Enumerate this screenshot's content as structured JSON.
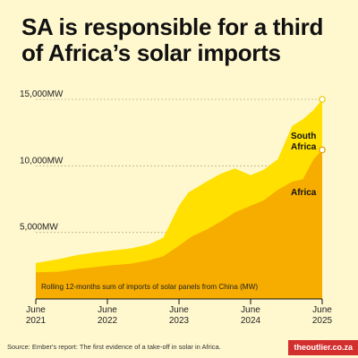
{
  "headline": {
    "line1": "SA is responsible for a third",
    "line2": "of Africa’s solar imports"
  },
  "colors": {
    "background": "#fff8cf",
    "africa_fill": "#f6ad00",
    "south_africa_fill": "#ffe000",
    "brand_bg": "#d32f2f"
  },
  "chart_data": {
    "type": "area",
    "subtitle": "Rolling 12-months sum of imports of solar panels from China (MW)",
    "y_ticks": [
      "5,000MW",
      "10,000MW",
      "15,000MW"
    ],
    "y_tick_values": [
      5000,
      10000,
      15000
    ],
    "x_ticks": [
      {
        "month": "June",
        "year": "2021",
        "x": 2021.42
      },
      {
        "month": "June",
        "year": "2022",
        "x": 2022.42
      },
      {
        "month": "June",
        "year": "2023",
        "x": 2023.42
      },
      {
        "month": "June",
        "year": "2024",
        "x": 2024.42
      },
      {
        "month": "June",
        "year": "2025",
        "x": 2025.42
      }
    ],
    "ylim": [
      0,
      15000
    ],
    "xlim": [
      2021.42,
      2025.42
    ],
    "grid": true,
    "stacked": true,
    "series": [
      {
        "name": "Africa",
        "color": "#f6ad00",
        "points": [
          [
            2021.42,
            2000
          ],
          [
            2021.75,
            2050
          ],
          [
            2022.0,
            2250
          ],
          [
            2022.25,
            2400
          ],
          [
            2022.42,
            2500
          ],
          [
            2022.75,
            2650
          ],
          [
            2023.0,
            2900
          ],
          [
            2023.2,
            3200
          ],
          [
            2023.42,
            4000
          ],
          [
            2023.6,
            4700
          ],
          [
            2023.8,
            5200
          ],
          [
            2024.0,
            5800
          ],
          [
            2024.2,
            6500
          ],
          [
            2024.42,
            7000
          ],
          [
            2024.6,
            7400
          ],
          [
            2024.8,
            8200
          ],
          [
            2025.0,
            8800
          ],
          [
            2025.15,
            9000
          ],
          [
            2025.3,
            10500
          ],
          [
            2025.42,
            11200
          ]
        ]
      },
      {
        "name": "South Africa",
        "color": "#ffe000",
        "points": [
          [
            2021.42,
            2700
          ],
          [
            2021.75,
            3000
          ],
          [
            2022.0,
            3300
          ],
          [
            2022.25,
            3500
          ],
          [
            2022.42,
            3600
          ],
          [
            2022.75,
            3800
          ],
          [
            2023.0,
            4100
          ],
          [
            2023.2,
            4600
          ],
          [
            2023.42,
            7000
          ],
          [
            2023.55,
            8000
          ],
          [
            2023.8,
            8800
          ],
          [
            2024.0,
            9400
          ],
          [
            2024.2,
            9800
          ],
          [
            2024.42,
            9300
          ],
          [
            2024.6,
            9700
          ],
          [
            2024.8,
            10500
          ],
          [
            2025.0,
            13000
          ],
          [
            2025.15,
            13500
          ],
          [
            2025.3,
            14200
          ],
          [
            2025.42,
            15000
          ]
        ]
      }
    ],
    "labels": {
      "south_africa": [
        "South",
        "Africa"
      ],
      "africa": "Africa"
    }
  },
  "footer": {
    "source": "Source: Ember's report: The first evidence of a take-off in solar in Africa.",
    "brand": "theoutlier.co.za"
  }
}
